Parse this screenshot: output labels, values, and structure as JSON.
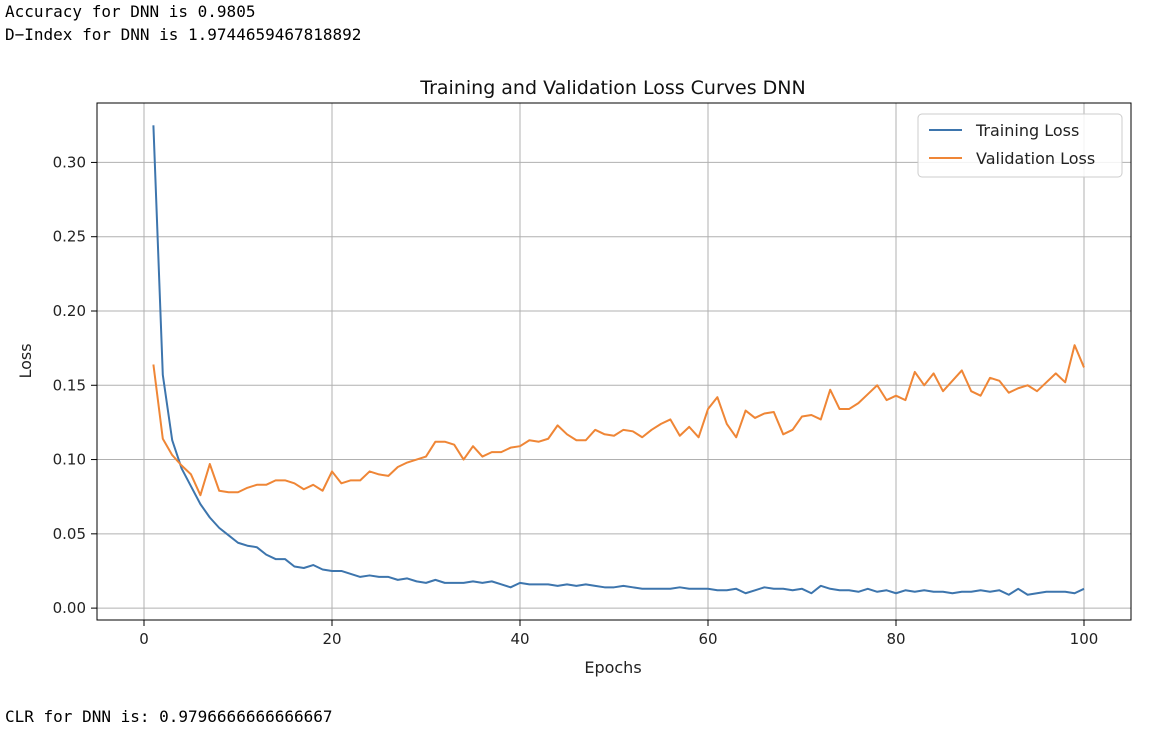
{
  "output": {
    "accuracy_line": "Accuracy for DNN is 0.9805",
    "dindex_line": "D−Index for DNN is 1.9744659467818892",
    "clr_line": "CLR for DNN is: 0.9796666666666667"
  },
  "chart_data": {
    "type": "line",
    "title": "Training and Validation Loss Curves DNN",
    "xlabel": "Epochs",
    "ylabel": "Loss",
    "xlim": [
      -5,
      105
    ],
    "ylim": [
      -0.008,
      0.34
    ],
    "xticks": [
      0,
      20,
      40,
      60,
      80,
      100
    ],
    "yticks": [
      0.0,
      0.05,
      0.1,
      0.15,
      0.2,
      0.25,
      0.3
    ],
    "xtick_labels": [
      "0",
      "20",
      "40",
      "60",
      "80",
      "100"
    ],
    "ytick_labels": [
      "0.00",
      "0.05",
      "0.10",
      "0.15",
      "0.20",
      "0.25",
      "0.30"
    ],
    "grid": true,
    "legend_position": "top-right",
    "x": [
      1,
      2,
      3,
      4,
      5,
      6,
      7,
      8,
      9,
      10,
      11,
      12,
      13,
      14,
      15,
      16,
      17,
      18,
      19,
      20,
      21,
      22,
      23,
      24,
      25,
      26,
      27,
      28,
      29,
      30,
      31,
      32,
      33,
      34,
      35,
      36,
      37,
      38,
      39,
      40,
      41,
      42,
      43,
      44,
      45,
      46,
      47,
      48,
      49,
      50,
      51,
      52,
      53,
      54,
      55,
      56,
      57,
      58,
      59,
      60,
      61,
      62,
      63,
      64,
      65,
      66,
      67,
      68,
      69,
      70,
      71,
      72,
      73,
      74,
      75,
      76,
      77,
      78,
      79,
      80,
      81,
      82,
      83,
      84,
      85,
      86,
      87,
      88,
      89,
      90,
      91,
      92,
      93,
      94,
      95,
      96,
      97,
      98,
      99,
      100
    ],
    "series": [
      {
        "name": "Training Loss",
        "color": "#3d75ad",
        "values": [
          0.325,
          0.157,
          0.113,
          0.094,
          0.082,
          0.07,
          0.061,
          0.054,
          0.049,
          0.044,
          0.042,
          0.041,
          0.036,
          0.033,
          0.033,
          0.028,
          0.027,
          0.029,
          0.026,
          0.025,
          0.025,
          0.023,
          0.021,
          0.022,
          0.021,
          0.021,
          0.019,
          0.02,
          0.018,
          0.017,
          0.019,
          0.017,
          0.017,
          0.017,
          0.018,
          0.017,
          0.018,
          0.016,
          0.014,
          0.017,
          0.016,
          0.016,
          0.016,
          0.015,
          0.016,
          0.015,
          0.016,
          0.015,
          0.014,
          0.014,
          0.015,
          0.014,
          0.013,
          0.013,
          0.013,
          0.013,
          0.014,
          0.013,
          0.013,
          0.013,
          0.012,
          0.012,
          0.013,
          0.01,
          0.012,
          0.014,
          0.013,
          0.013,
          0.012,
          0.013,
          0.01,
          0.015,
          0.013,
          0.012,
          0.012,
          0.011,
          0.013,
          0.011,
          0.012,
          0.01,
          0.012,
          0.011,
          0.012,
          0.011,
          0.011,
          0.01,
          0.011,
          0.011,
          0.012,
          0.011,
          0.012,
          0.009,
          0.013,
          0.009,
          0.01,
          0.011,
          0.011,
          0.011,
          0.01,
          0.013
        ]
      },
      {
        "name": "Validation Loss",
        "color": "#ef8636",
        "values": [
          0.164,
          0.114,
          0.103,
          0.096,
          0.09,
          0.076,
          0.097,
          0.079,
          0.078,
          0.078,
          0.081,
          0.083,
          0.083,
          0.086,
          0.086,
          0.084,
          0.08,
          0.083,
          0.079,
          0.092,
          0.084,
          0.086,
          0.086,
          0.092,
          0.09,
          0.089,
          0.095,
          0.098,
          0.1,
          0.102,
          0.112,
          0.112,
          0.11,
          0.1,
          0.109,
          0.102,
          0.105,
          0.105,
          0.108,
          0.109,
          0.113,
          0.112,
          0.114,
          0.123,
          0.117,
          0.113,
          0.113,
          0.12,
          0.117,
          0.116,
          0.12,
          0.119,
          0.115,
          0.12,
          0.124,
          0.127,
          0.116,
          0.122,
          0.115,
          0.134,
          0.142,
          0.124,
          0.115,
          0.133,
          0.128,
          0.131,
          0.132,
          0.117,
          0.12,
          0.129,
          0.13,
          0.127,
          0.147,
          0.134,
          0.134,
          0.138,
          0.144,
          0.15,
          0.14,
          0.143,
          0.14,
          0.159,
          0.15,
          0.158,
          0.146,
          0.153,
          0.16,
          0.146,
          0.143,
          0.155,
          0.153,
          0.145,
          0.148,
          0.15,
          0.146,
          0.152,
          0.158,
          0.152,
          0.177,
          0.162
        ]
      }
    ]
  }
}
